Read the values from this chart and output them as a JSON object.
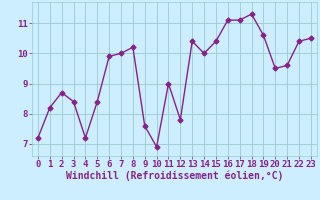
{
  "x": [
    0,
    1,
    2,
    3,
    4,
    5,
    6,
    7,
    8,
    9,
    10,
    11,
    12,
    13,
    14,
    15,
    16,
    17,
    18,
    19,
    20,
    21,
    22,
    23
  ],
  "y": [
    7.2,
    8.2,
    8.7,
    8.4,
    7.2,
    8.4,
    9.9,
    10.0,
    10.2,
    7.6,
    6.9,
    9.0,
    7.8,
    10.4,
    10.0,
    10.4,
    11.1,
    11.1,
    11.3,
    10.6,
    9.5,
    9.6,
    10.4,
    10.5
  ],
  "line_color": "#882288",
  "marker": "D",
  "marker_size": 2.5,
  "line_width": 1.0,
  "bg_color": "#cceeff",
  "grid_color": "#99cccc",
  "xlabel": "Windchill (Refroidissement éolien,°C)",
  "xlabel_color": "#882288",
  "tick_color": "#882288",
  "ylim": [
    6.6,
    11.7
  ],
  "yticks": [
    7,
    8,
    9,
    10,
    11
  ],
  "xticks": [
    0,
    1,
    2,
    3,
    4,
    5,
    6,
    7,
    8,
    9,
    10,
    11,
    12,
    13,
    14,
    15,
    16,
    17,
    18,
    19,
    20,
    21,
    22,
    23
  ],
  "xlabel_fontsize": 7.0,
  "tick_fontsize": 6.5
}
